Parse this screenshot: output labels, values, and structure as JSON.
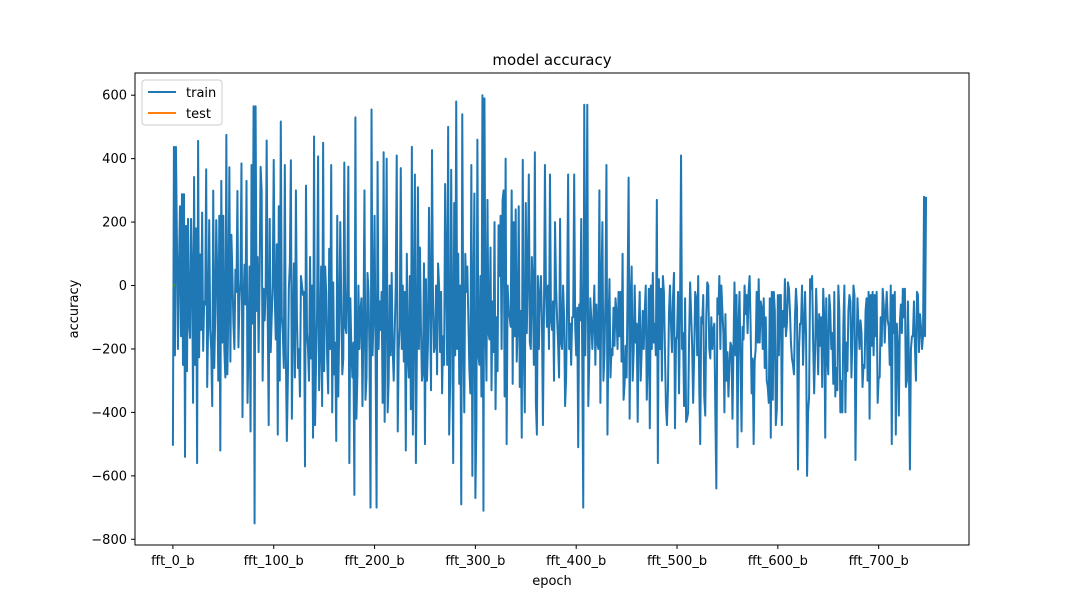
{
  "chart_data": {
    "type": "line",
    "title": "model accuracy",
    "xlabel": "epoch",
    "ylabel": "accuracy",
    "xlim": [
      -37.6,
      789.6
    ],
    "ylim": [
      -818,
      670
    ],
    "x_tick_labels": [
      {
        "index": 0,
        "label": "fft_0_b"
      },
      {
        "index": 100,
        "label": "fft_100_b"
      },
      {
        "index": 200,
        "label": "fft_200_b"
      },
      {
        "index": 300,
        "label": "fft_300_b"
      },
      {
        "index": 400,
        "label": "fft_400_b"
      },
      {
        "index": 500,
        "label": "fft_500_b"
      },
      {
        "index": 600,
        "label": "fft_600_b"
      },
      {
        "index": 700,
        "label": "fft_700_b"
      }
    ],
    "y_ticks": [
      -800,
      -600,
      -400,
      -200,
      0,
      200,
      400,
      600
    ],
    "grid": false,
    "legend_position": "upper left",
    "series": [
      {
        "name": "train",
        "color": "#1f77b4",
        "x_start": 0,
        "x_step": 1,
        "values": [
          -505,
          437,
          -220,
          437,
          137,
          -200,
          56,
          250,
          -160,
          288,
          -250,
          288,
          -540,
          188,
          -270,
          210,
          -120,
          -165,
          210,
          34,
          -370,
          342,
          -250,
          180,
          -560,
          456,
          -226,
          98,
          -140,
          230,
          -206,
          -51,
          -60,
          366,
          -320,
          -110,
          206,
          -140,
          -200,
          -380,
          299,
          -260,
          -90,
          206,
          30,
          -300,
          220,
          -520,
          330,
          -180,
          220,
          -200,
          -290,
          475,
          -280,
          -80,
          373,
          -240,
          160,
          40,
          -120,
          -200,
          50,
          -20,
          298,
          -195,
          -50,
          20,
          385,
          -415,
          -60,
          66,
          -60,
          330,
          -370,
          -180,
          60,
          -460,
          380,
          -120,
          565,
          -750,
          565,
          -80,
          90,
          -210,
          30,
          374,
          300,
          -300,
          -10,
          -110,
          -10,
          457,
          -90,
          -440,
          210,
          -210,
          -100,
          0,
          396,
          -30,
          -170,
          130,
          -470,
          250,
          -300,
          517,
          -100,
          -150,
          -260,
          380,
          -210,
          -490,
          -300,
          -10,
          70,
          395,
          -420,
          -120,
          70,
          -290,
          300,
          -100,
          -260,
          -200,
          -350,
          30,
          0,
          -30,
          -20,
          -570,
          315,
          -150,
          -200,
          -300,
          90,
          -230,
          0,
          -480,
          470,
          -440,
          -240,
          -80,
          407,
          -330,
          -200,
          60,
          -380,
          450,
          -270,
          60,
          -20,
          -230,
          -340,
          116,
          -200,
          380,
          -400,
          10,
          -280,
          -180,
          -490,
          220,
          -350,
          -120,
          200,
          -60,
          -280,
          -230,
          388,
          -130,
          -150,
          0,
          375,
          -560,
          -40,
          -200,
          -290,
          -180,
          -660,
          530,
          -420,
          -280,
          0,
          -200,
          -80,
          -40,
          -380,
          -130,
          300,
          -360,
          -290,
          40,
          -20,
          -220,
          -700,
          555,
          -220,
          -100,
          220,
          -200,
          -700,
          390,
          -200,
          -50,
          -140,
          -20,
          -370,
          420,
          -430,
          -60,
          400,
          -400,
          -300,
          0,
          -220,
          40,
          -200,
          -300,
          -150,
          0,
          410,
          -460,
          -200,
          -130,
          370,
          -200,
          0,
          -240,
          -20,
          -520,
          100,
          -220,
          -290,
          30,
          -390,
          437,
          -470,
          -90,
          350,
          -560,
          -200,
          310,
          -200,
          120,
          -130,
          -300,
          -270,
          70,
          -500,
          20,
          -300,
          -180,
          245,
          -40,
          -330,
          427,
          -50,
          -210,
          -190,
          0,
          -280,
          70,
          0,
          -210,
          -20,
          -340,
          -160,
          -250,
          320,
          40,
          -250,
          500,
          -470,
          -300,
          365,
          -110,
          -560,
          260,
          -220,
          580,
          -200,
          100,
          -310,
          0,
          -690,
          540,
          -150,
          -400,
          100,
          -20,
          60,
          -100,
          -260,
          -340,
          380,
          -600,
          -50,
          290,
          -670,
          -440,
          460,
          -220,
          -250,
          30,
          -350,
          600,
          -710,
          590,
          -110,
          -300,
          270,
          -150,
          -170,
          120,
          -330,
          -50,
          -210,
          200,
          -390,
          -100,
          -270,
          190,
          30,
          220,
          -200,
          270,
          300,
          -350,
          400,
          -500,
          0,
          -80,
          -100,
          -130,
          300,
          -310,
          200,
          -160,
          240,
          -240,
          -120,
          250,
          -320,
          -80,
          -480,
          396,
          -200,
          -400,
          260,
          -150,
          40,
          350,
          -180,
          -200,
          90,
          0,
          -250,
          420,
          -370,
          -470,
          30,
          -200,
          -30,
          30,
          -100,
          -440,
          -100,
          380,
          -20,
          -130,
          0,
          -200,
          350,
          -110,
          -140,
          -50,
          -300,
          200,
          0,
          -100,
          -180,
          -290,
          210,
          -180,
          -200,
          0,
          -100,
          -380,
          -290,
          -40,
          350,
          -200,
          -120,
          -250,
          -100,
          -100,
          350,
          -130,
          -220,
          -70,
          -510,
          -60,
          -110,
          210,
          -230,
          -700,
          570,
          -220,
          -20,
          570,
          -380,
          -230,
          -40,
          -110,
          -200,
          -110,
          0,
          -250,
          -60,
          -180,
          -200,
          300,
          -370,
          0,
          200,
          -300,
          -220,
          -30,
          380,
          -470,
          -140,
          20,
          -290,
          -200,
          -220,
          -70,
          -190,
          -40,
          -90,
          -200,
          -20,
          -160,
          -20,
          -240,
          100,
          -360,
          -310,
          -190,
          -290,
          0,
          340,
          -420,
          -50,
          60,
          -300,
          -210,
          0,
          -180,
          -120,
          -430,
          -130,
          -20,
          -300,
          -200,
          -80,
          -200,
          -80,
          0,
          -360,
          -230,
          -10,
          -450,
          0,
          -200,
          40,
          -180,
          -120,
          -220,
          270,
          -560,
          20,
          -200,
          -10,
          -300,
          30,
          -20,
          -200,
          -380,
          -440,
          -330,
          -90,
          0,
          -120,
          -210,
          -40,
          40,
          -450,
          -170,
          -160,
          -20,
          -340,
          -70,
          410,
          -200,
          -150,
          -380,
          -40,
          -430,
          -420,
          -400,
          -160,
          10,
          -90,
          -190,
          -370,
          -220,
          -20,
          -40,
          -220,
          30,
          -310,
          -500,
          -100,
          -120,
          -30,
          -350,
          -410,
          -100,
          10,
          0,
          -200,
          -230,
          -100,
          -200,
          -140,
          -120,
          -400,
          -640,
          -40,
          -90,
          30,
          -200,
          0,
          -80,
          -150,
          -400,
          -90,
          -300,
          -210,
          -350,
          -250,
          -180,
          -190,
          -420,
          -200,
          10,
          -220,
          -30,
          -510,
          -120,
          -20,
          -250,
          -460,
          -130,
          -170,
          0,
          -90,
          -30,
          -150,
          -20,
          30,
          -130,
          -340,
          -230,
          -500,
          -240,
          -200,
          -20,
          -180,
          20,
          -180,
          -50,
          -70,
          -200,
          -40,
          -260,
          -100,
          -300,
          -320,
          -370,
          -40,
          -480,
          -20,
          -360,
          -20,
          -80,
          -440,
          -390,
          -30,
          -220,
          -30,
          -30,
          -440,
          -80,
          -130,
          20,
          -160,
          -120,
          10,
          -10,
          -80,
          -180,
          -230,
          -250,
          -280,
          -100,
          -10,
          -70,
          -580,
          -200,
          -120,
          -120,
          0,
          -250,
          -130,
          -20,
          -160,
          -600,
          -400,
          -350,
          20,
          -10,
          30,
          -180,
          -340,
          -200,
          -10,
          -130,
          -280,
          -90,
          -190,
          -100,
          -320,
          -10,
          -100,
          -480,
          -40,
          -220,
          -280,
          -30,
          -80,
          -200,
          -150,
          -310,
          -20,
          -350,
          -260,
          -330,
          0,
          -80,
          -400,
          -300,
          -400,
          -120,
          0,
          -400,
          -180,
          -270,
          -80,
          -30,
          -50,
          -290,
          -160,
          0,
          -30,
          -550,
          -230,
          -40,
          -130,
          -200,
          -110,
          -150,
          -320,
          -250,
          -260,
          -80,
          -40,
          -300,
          -20,
          -420,
          -30,
          -190,
          -20,
          -220,
          -30,
          -160,
          -20,
          -370,
          -290,
          -290,
          -100,
          -190,
          -10,
          -60,
          -180,
          -90,
          -20,
          -110,
          -130,
          -250,
          0,
          -500,
          -30,
          -150,
          -20,
          -470,
          -120,
          -190,
          -410,
          -120,
          -60,
          -150,
          -10,
          -100,
          -10,
          -320,
          -300,
          -50,
          -240,
          -580,
          -200,
          -160,
          -160,
          -50,
          -200,
          -300,
          -20,
          -30,
          -210,
          -90,
          -130,
          -200,
          -160,
          280,
          -160,
          280
        ]
      },
      {
        "name": "test",
        "color": "#ff7f0e",
        "x_start": 0,
        "x_step": 1,
        "values": [
          0,
          0,
          0
        ]
      },
      {
        "name": "",
        "color": "#2ca02c",
        "x_start": 0,
        "x_step": 1,
        "values": [
          0,
          0,
          0
        ]
      }
    ]
  }
}
